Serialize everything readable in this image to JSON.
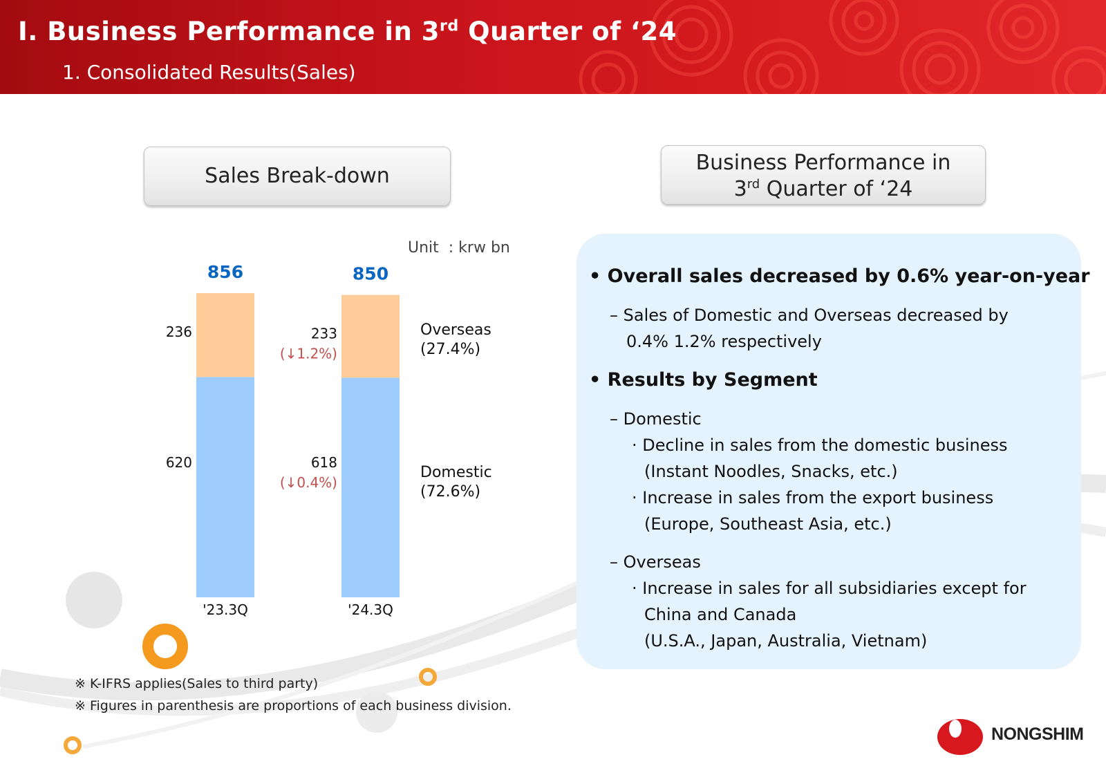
{
  "header": {
    "title_pre": "Ⅰ. Business Performance in 3",
    "title_sup": "rd",
    "title_post": " Quarter of ‘24",
    "subtitle": "1. Consolidated Results(Sales)"
  },
  "left_pill": {
    "label": "Sales Break-down"
  },
  "right_pill": {
    "line1": "Business Performance in",
    "line2_pre": "3",
    "line2_sup": "rd",
    "line2_post": " Quarter of ‘24"
  },
  "unit_label": "Unit  : krw bn",
  "chart_data": {
    "type": "bar",
    "stacked": true,
    "categories": [
      "'23.3Q",
      "'24.3Q"
    ],
    "totals": [
      856,
      850
    ],
    "series": [
      {
        "name": "Domestic",
        "values": [
          620,
          618
        ],
        "color": "#9dccfd",
        "proportion_label": "(72.6%)",
        "change_labels": [
          "",
          "(↓0.4%)"
        ]
      },
      {
        "name": "Overseas",
        "values": [
          236,
          233
        ],
        "color": "#fdcc99",
        "proportion_label": "(27.4%)",
        "change_labels": [
          "",
          "(↓1.2%)"
        ]
      }
    ],
    "total_color": "#0b66c2",
    "change_color": "#c0504d"
  },
  "summary": {
    "bullet_1": "• Overall sales decreased by 0.6% year-on-year",
    "bullet_1_sub_1": "– Sales of Domestic and Overseas decreased by",
    "bullet_1_sub_2": "0.4% 1.2% respectively",
    "bullet_2": "• Results by Segment",
    "domestic_head": "– Domestic",
    "domestic_1": "· Decline in sales from the domestic business",
    "domestic_2": "(Instant Noodles, Snacks, etc.)",
    "domestic_3": "· Increase in sales from the export business",
    "domestic_4": "(Europe, Southeast Asia, etc.)",
    "overseas_head": "– Overseas",
    "overseas_1": "· Increase in sales for all subsidiaries except for",
    "overseas_2": "China and Canada",
    "overseas_3": "(U.S.A., Japan, Australia, Vietnam)"
  },
  "notes": {
    "note_1": "※ K-IFRS applies(Sales to third party)",
    "note_2": "※ Figures in parenthesis are proportions of each business division."
  },
  "logo": {
    "text": "NONGSHIM"
  }
}
